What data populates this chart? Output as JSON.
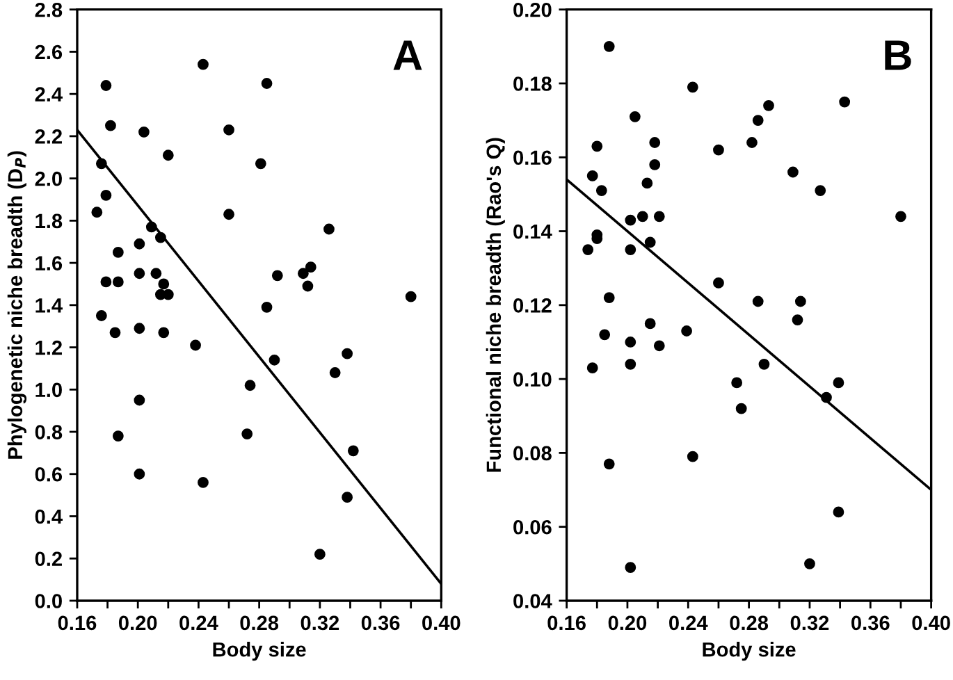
{
  "chart_data": [
    {
      "type": "scatter",
      "xlabel": "Body size",
      "ylabel": "Phylogenetic niche breadth (D$_{P}$)",
      "annotations": [
        "A"
      ],
      "grid": false,
      "xlim": [
        0.16,
        0.4
      ],
      "ylim": [
        0.0,
        2.8
      ],
      "xticks": [
        {
          "value": 0.16,
          "label": "0.16"
        },
        {
          "value": 0.18,
          "label": null
        },
        {
          "value": 0.2,
          "label": "0.20"
        },
        {
          "value": 0.22,
          "label": null
        },
        {
          "value": 0.24,
          "label": "0.24"
        },
        {
          "value": 0.26,
          "label": null
        },
        {
          "value": 0.28,
          "label": "0.28"
        },
        {
          "value": 0.3,
          "label": null
        },
        {
          "value": 0.32,
          "label": "0.32"
        },
        {
          "value": 0.34,
          "label": null
        },
        {
          "value": 0.36,
          "label": "0.36"
        },
        {
          "value": 0.38,
          "label": null
        },
        {
          "value": 0.4,
          "label": "0.40"
        }
      ],
      "yticks": [
        {
          "value": 0.0,
          "label": "0.0"
        },
        {
          "value": 0.2,
          "label": "0.2"
        },
        {
          "value": 0.4,
          "label": "0.4"
        },
        {
          "value": 0.6,
          "label": "0.6"
        },
        {
          "value": 0.8,
          "label": "0.8"
        },
        {
          "value": 1.0,
          "label": "1.0"
        },
        {
          "value": 1.2,
          "label": "1.2"
        },
        {
          "value": 1.4,
          "label": "1.4"
        },
        {
          "value": 1.6,
          "label": "1.6"
        },
        {
          "value": 1.8,
          "label": "1.8"
        },
        {
          "value": 2.0,
          "label": "2.0"
        },
        {
          "value": 2.2,
          "label": "2.2"
        },
        {
          "value": 2.4,
          "label": "2.4"
        },
        {
          "value": 2.6,
          "label": "2.6"
        },
        {
          "value": 2.8,
          "label": "2.8"
        }
      ],
      "series": [
        {
          "marker": "circle",
          "color": "#000000",
          "x": [
            0.179,
            0.243,
            0.285,
            0.182,
            0.204,
            0.26,
            0.22,
            0.176,
            0.281,
            0.179,
            0.173,
            0.26,
            0.209,
            0.326,
            0.215,
            0.187,
            0.201,
            0.179,
            0.187,
            0.201,
            0.212,
            0.217,
            0.215,
            0.22,
            0.292,
            0.309,
            0.314,
            0.312,
            0.285,
            0.38,
            0.176,
            0.185,
            0.201,
            0.217,
            0.238,
            0.29,
            0.274,
            0.338,
            0.33,
            0.201,
            0.187,
            0.272,
            0.342,
            0.201,
            0.243,
            0.338,
            0.32
          ],
          "values": [
            2.44,
            2.54,
            2.45,
            2.25,
            2.22,
            2.23,
            2.11,
            2.07,
            2.07,
            1.92,
            1.84,
            1.83,
            1.77,
            1.76,
            1.72,
            1.65,
            1.69,
            1.51,
            1.51,
            1.55,
            1.55,
            1.5,
            1.45,
            1.45,
            1.54,
            1.55,
            1.58,
            1.49,
            1.39,
            1.44,
            1.35,
            1.27,
            1.29,
            1.27,
            1.21,
            1.14,
            1.02,
            1.17,
            1.08,
            0.95,
            0.78,
            0.79,
            0.71,
            0.6,
            0.56,
            0.49,
            0.22
          ]
        },
        {
          "type": "line",
          "color": "#000000",
          "line_style": "solid",
          "x": [
            0.16,
            0.4
          ],
          "marker": "none",
          "values": [
            2.23,
            0.08
          ]
        }
      ]
    },
    {
      "type": "scatter",
      "xlabel": "Body size",
      "ylabel": "Functional niche breadth (Rao's Q)",
      "annotations": [
        "B"
      ],
      "grid": false,
      "xlim": [
        0.16,
        0.4
      ],
      "ylim": [
        0.04,
        0.2
      ],
      "xticks": [
        {
          "value": 0.16,
          "label": "0.16"
        },
        {
          "value": 0.18,
          "label": null
        },
        {
          "value": 0.2,
          "label": "0.20"
        },
        {
          "value": 0.22,
          "label": null
        },
        {
          "value": 0.24,
          "label": "0.24"
        },
        {
          "value": 0.26,
          "label": null
        },
        {
          "value": 0.28,
          "label": "0.28"
        },
        {
          "value": 0.3,
          "label": null
        },
        {
          "value": 0.32,
          "label": "0.32"
        },
        {
          "value": 0.34,
          "label": null
        },
        {
          "value": 0.36,
          "label": "0.36"
        },
        {
          "value": 0.38,
          "label": null
        },
        {
          "value": 0.4,
          "label": "0.40"
        }
      ],
      "yticks": [
        {
          "value": 0.04,
          "label": "0.04"
        },
        {
          "value": 0.06,
          "label": "0.06"
        },
        {
          "value": 0.08,
          "label": "0.08"
        },
        {
          "value": 0.1,
          "label": "0.10"
        },
        {
          "value": 0.12,
          "label": "0.12"
        },
        {
          "value": 0.14,
          "label": "0.14"
        },
        {
          "value": 0.16,
          "label": "0.16"
        },
        {
          "value": 0.18,
          "label": "0.18"
        },
        {
          "value": 0.2,
          "label": "0.20"
        }
      ],
      "series": [
        {
          "marker": "circle",
          "color": "#000000",
          "x": [
            0.188,
            0.243,
            0.343,
            0.205,
            0.293,
            0.286,
            0.18,
            0.218,
            0.26,
            0.282,
            0.218,
            0.177,
            0.183,
            0.213,
            0.309,
            0.327,
            0.38,
            0.202,
            0.21,
            0.221,
            0.18,
            0.18,
            0.174,
            0.202,
            0.215,
            0.26,
            0.188,
            0.286,
            0.314,
            0.312,
            0.177,
            0.185,
            0.202,
            0.202,
            0.215,
            0.221,
            0.239,
            0.272,
            0.275,
            0.29,
            0.331,
            0.339,
            0.188,
            0.243,
            0.339,
            0.202,
            0.32
          ],
          "values": [
            0.19,
            0.179,
            0.175,
            0.171,
            0.174,
            0.17,
            0.163,
            0.164,
            0.162,
            0.164,
            0.158,
            0.155,
            0.151,
            0.153,
            0.156,
            0.151,
            0.144,
            0.143,
            0.144,
            0.144,
            0.139,
            0.138,
            0.135,
            0.135,
            0.137,
            0.126,
            0.122,
            0.121,
            0.121,
            0.116,
            0.103,
            0.112,
            0.11,
            0.104,
            0.115,
            0.109,
            0.113,
            0.099,
            0.092,
            0.104,
            0.095,
            0.099,
            0.077,
            0.079,
            0.064,
            0.049,
            0.05
          ]
        },
        {
          "type": "line",
          "color": "#000000",
          "line_style": "solid",
          "x": [
            0.16,
            0.4
          ],
          "marker": "none",
          "values": [
            0.154,
            0.07
          ]
        }
      ]
    }
  ]
}
